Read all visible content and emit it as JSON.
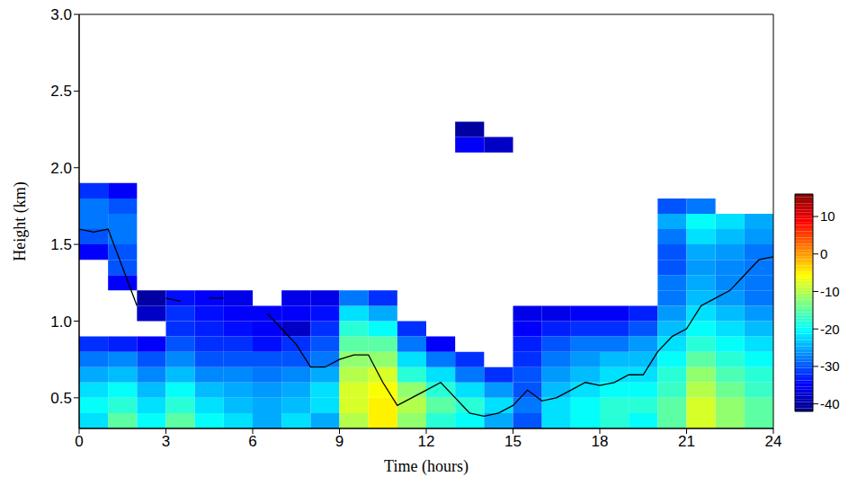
{
  "chart_data": {
    "type": "heatmap",
    "x_label": "Time (hours)",
    "y_label": "Height (km)",
    "xlim": [
      0,
      24
    ],
    "xticks": [
      0,
      3,
      6,
      9,
      12,
      15,
      18,
      21,
      24
    ],
    "ylim": [
      0.3,
      3.0
    ],
    "yticks": [
      0.5,
      {
        "value": 1,
        "label": "1.0"
      },
      1.5,
      {
        "value": 2,
        "label": "2.0"
      },
      2.5,
      {
        "value": 3,
        "label": "3.0"
      }
    ],
    "time_bins": [
      0,
      1,
      2,
      3,
      4,
      5,
      6,
      7,
      8,
      9,
      10,
      11,
      12,
      13,
      14,
      15,
      16,
      17,
      18,
      19,
      20,
      21,
      22,
      23,
      24
    ],
    "height_bins": [
      0.3,
      0.4,
      0.5,
      0.6,
      0.7,
      0.8,
      0.9,
      1.0,
      1.1,
      1.2,
      1.3,
      1.4,
      1.5,
      1.6,
      1.7,
      1.8,
      1.9,
      2.0,
      2.1,
      2.2,
      2.3
    ],
    "cells": [
      [
        -22,
        -15,
        -20,
        -15,
        -20,
        -22,
        -25,
        -22,
        -25,
        -10,
        -5,
        -12,
        -18,
        -20,
        -25,
        -30,
        -22,
        -20,
        -18,
        -20,
        -15,
        -8,
        -12,
        -15
      ],
      [
        -20,
        -18,
        -22,
        -18,
        -22,
        -24,
        -25,
        -24,
        -22,
        -8,
        -5,
        -10,
        -15,
        -18,
        -22,
        -28,
        -22,
        -20,
        -18,
        -18,
        -15,
        -8,
        -12,
        -15
      ],
      [
        -22,
        -20,
        -24,
        -20,
        -24,
        -25,
        -26,
        -25,
        -22,
        -8,
        -6,
        -12,
        -18,
        -22,
        -26,
        -30,
        -24,
        -22,
        -20,
        -20,
        -17,
        -10,
        -14,
        -17
      ],
      [
        -25,
        -24,
        -27,
        -24,
        -27,
        -27,
        -28,
        -27,
        -25,
        -10,
        -8,
        -18,
        -22,
        -28,
        -32,
        -30,
        -26,
        -24,
        -22,
        -22,
        -18,
        -12,
        -16,
        -18
      ],
      [
        -28,
        -27,
        -30,
        -27,
        -30,
        -30,
        -30,
        -30,
        -28,
        -12,
        -12,
        -22,
        -28,
        -32,
        null,
        -32,
        -28,
        -26,
        -24,
        -24,
        -20,
        -15,
        -18,
        -20
      ],
      [
        -32,
        -33,
        -35,
        -30,
        -32,
        -32,
        -34,
        -32,
        -30,
        -15,
        -15,
        -28,
        -35,
        null,
        null,
        -33,
        -30,
        -28,
        -28,
        -26,
        -22,
        -18,
        -20,
        -22
      ],
      [
        null,
        null,
        null,
        -32,
        -33,
        -34,
        -35,
        -38,
        -32,
        -18,
        -20,
        -32,
        null,
        null,
        null,
        -35,
        -33,
        -32,
        -32,
        -30,
        -24,
        -20,
        -22,
        -24
      ],
      [
        null,
        null,
        -38,
        -32,
        -34,
        -35,
        -35,
        -35,
        -34,
        -22,
        -25,
        null,
        null,
        null,
        null,
        -36,
        -36,
        -35,
        -35,
        -33,
        -26,
        -22,
        -24,
        -26
      ],
      [
        null,
        null,
        -40,
        -34,
        -35,
        -36,
        null,
        -36,
        -36,
        -28,
        -32,
        null,
        null,
        null,
        null,
        null,
        null,
        null,
        null,
        null,
        -28,
        -24,
        -26,
        -28
      ],
      [
        null,
        -35,
        null,
        null,
        null,
        null,
        null,
        null,
        null,
        null,
        null,
        null,
        null,
        null,
        null,
        null,
        null,
        null,
        null,
        null,
        -28,
        -25,
        -27,
        -28
      ],
      [
        null,
        -30,
        null,
        null,
        null,
        null,
        null,
        null,
        null,
        null,
        null,
        null,
        null,
        null,
        null,
        null,
        null,
        null,
        null,
        null,
        -30,
        -26,
        -27,
        -28
      ],
      [
        -35,
        -30,
        null,
        null,
        null,
        null,
        null,
        null,
        null,
        null,
        null,
        null,
        null,
        null,
        null,
        null,
        null,
        null,
        null,
        null,
        -30,
        -25,
        -26,
        -28
      ],
      [
        -30,
        -28,
        null,
        null,
        null,
        null,
        null,
        null,
        null,
        null,
        null,
        null,
        null,
        null,
        null,
        null,
        null,
        null,
        null,
        null,
        -28,
        -22,
        -24,
        -26
      ],
      [
        -28,
        -28,
        null,
        null,
        null,
        null,
        null,
        null,
        null,
        null,
        null,
        null,
        null,
        null,
        null,
        null,
        null,
        null,
        null,
        null,
        -25,
        -20,
        -22,
        -25
      ],
      [
        -28,
        -30,
        null,
        null,
        null,
        null,
        null,
        null,
        null,
        null,
        null,
        null,
        null,
        null,
        null,
        null,
        null,
        null,
        null,
        null,
        -30,
        -28,
        null,
        null
      ],
      [
        -32,
        -35,
        null,
        null,
        null,
        null,
        null,
        null,
        null,
        null,
        null,
        null,
        null,
        null,
        null,
        null,
        null,
        null,
        null,
        null,
        null,
        null,
        null,
        null
      ],
      [
        null,
        null,
        null,
        null,
        null,
        null,
        null,
        null,
        null,
        null,
        null,
        null,
        null,
        null,
        null,
        null,
        null,
        null,
        null,
        null,
        null,
        null,
        null,
        null
      ],
      [
        null,
        null,
        null,
        null,
        null,
        null,
        null,
        null,
        null,
        null,
        null,
        null,
        null,
        null,
        null,
        null,
        null,
        null,
        null,
        null,
        null,
        null,
        null,
        null
      ],
      [
        null,
        null,
        null,
        null,
        null,
        null,
        null,
        null,
        null,
        null,
        null,
        null,
        null,
        -35,
        -38,
        null,
        null,
        null,
        null,
        null,
        null,
        null,
        null,
        null
      ],
      [
        null,
        null,
        null,
        null,
        null,
        null,
        null,
        null,
        null,
        null,
        null,
        null,
        null,
        -40,
        null,
        null,
        null,
        null,
        null,
        null,
        null,
        null,
        null,
        null
      ]
    ],
    "colorbar": {
      "range": [
        -42,
        16
      ],
      "ticks": [
        -40,
        -30,
        -20,
        -10,
        0,
        10
      ]
    },
    "series": [
      {
        "type": "line",
        "color": "#000000",
        "x": [
          0,
          0.5,
          1,
          1.5,
          2,
          2.5,
          3,
          3.5,
          4,
          4.5,
          5,
          5.5,
          6,
          6.5,
          7,
          7.5,
          8,
          8.5,
          9,
          9.5,
          10,
          10.5,
          11,
          11.5,
          12,
          12.5,
          13,
          13.5,
          14,
          14.5,
          15,
          15.5,
          16,
          16.5,
          17,
          17.5,
          18,
          18.5,
          19,
          19.5,
          20,
          20.5,
          21,
          21.5,
          22,
          22.5,
          23,
          23.5,
          24
        ],
        "values": [
          1.6,
          1.58,
          1.6,
          1.35,
          1.1,
          null,
          1.15,
          1.13,
          null,
          1.15,
          1.15,
          null,
          null,
          1.05,
          0.95,
          0.85,
          0.7,
          0.7,
          0.75,
          0.78,
          0.78,
          0.6,
          0.45,
          0.5,
          0.55,
          0.6,
          0.5,
          0.4,
          0.38,
          0.4,
          0.45,
          0.55,
          0.48,
          0.5,
          0.55,
          0.6,
          0.58,
          0.6,
          0.65,
          0.65,
          0.8,
          0.9,
          0.95,
          1.1,
          1.15,
          1.2,
          1.3,
          1.4,
          1.42
        ]
      }
    ]
  }
}
